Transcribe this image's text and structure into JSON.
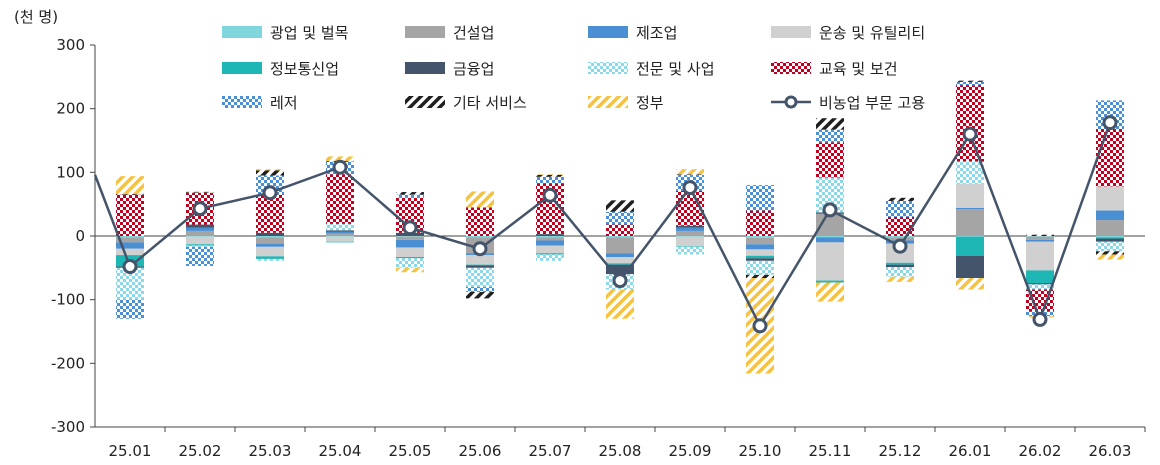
{
  "chart_data": {
    "type": "bar",
    "stacked": true,
    "unit_label": "(천 명)",
    "title": "",
    "xlabel": "",
    "ylabel": "",
    "ylim": [
      -300,
      300
    ],
    "yticks": [
      -300,
      -200,
      -100,
      0,
      100,
      200,
      300
    ],
    "grid": false,
    "legend_position": "top",
    "categories": [
      "25.01",
      "25.02",
      "25.03",
      "25.04",
      "25.05",
      "25.06",
      "25.07",
      "25.08",
      "25.09",
      "25.10",
      "25.11",
      "25.12",
      "26.01",
      "26.02",
      "26.03"
    ],
    "series": [
      {
        "name": "광업 및 벌목",
        "type": "bar",
        "pattern": "solid",
        "color": "#7fd6dc",
        "values": [
          -2,
          -1,
          -2,
          -1,
          -1,
          -2,
          -2,
          -2,
          -1,
          -3,
          -2,
          -2,
          -1,
          -1,
          -2
        ]
      },
      {
        "name": "건설업",
        "type": "bar",
        "pattern": "solid",
        "color": "#a5a5a5",
        "values": [
          -8,
          8,
          -10,
          4,
          -5,
          -25,
          -5,
          -25,
          8,
          -10,
          35,
          -5,
          42,
          -5,
          25
        ]
      },
      {
        "name": "제조업",
        "type": "bar",
        "pattern": "solid",
        "color": "#4a8fd4",
        "values": [
          -10,
          5,
          -5,
          3,
          -12,
          -3,
          -8,
          -6,
          5,
          -8,
          -8,
          -5,
          2,
          -3,
          15
        ]
      },
      {
        "name": "운송 및 유틸리티",
        "type": "bar",
        "pattern": "solid",
        "color": "#d0d0d0",
        "values": [
          -10,
          -12,
          -15,
          -8,
          -15,
          -15,
          -12,
          -10,
          -15,
          -10,
          -60,
          -30,
          38,
          -45,
          38
        ]
      },
      {
        "name": "정보통신업",
        "type": "bar",
        "pattern": "solid",
        "color": "#1fb6b6",
        "values": [
          -18,
          -2,
          -4,
          -1,
          -2,
          -1,
          -2,
          -2,
          -1,
          -4,
          -3,
          -3,
          -30,
          -20,
          -2
        ]
      },
      {
        "name": "금융업",
        "type": "bar",
        "pattern": "solid",
        "color": "#44546a",
        "values": [
          -2,
          5,
          5,
          2,
          5,
          -4,
          3,
          -15,
          3,
          -4,
          2,
          -4,
          -35,
          -2,
          -5
        ]
      },
      {
        "name": "전문 및 사업",
        "type": "bar",
        "pattern": "checker",
        "color": "#8dd8e8",
        "values": [
          -50,
          -2,
          -3,
          10,
          -15,
          -30,
          -10,
          -24,
          -12,
          -22,
          55,
          -15,
          35,
          -8,
          -15
        ]
      },
      {
        "name": "교육 및 보건",
        "type": "bar",
        "pattern": "checker",
        "color": "#c0001e",
        "values": [
          65,
          50,
          60,
          78,
          55,
          45,
          80,
          18,
          55,
          40,
          55,
          30,
          120,
          -35,
          90
        ]
      },
      {
        "name": "레저",
        "type": "bar",
        "pattern": "checker",
        "color": "#4a90d9",
        "values": [
          -30,
          -30,
          30,
          20,
          5,
          -8,
          10,
          20,
          25,
          40,
          20,
          25,
          5,
          -7,
          45
        ]
      },
      {
        "name": "기타 서비스",
        "type": "bar",
        "pattern": "stripe",
        "color": "#1f1f1f",
        "values": [
          1,
          1,
          8,
          1,
          4,
          -10,
          3,
          18,
          1,
          -5,
          18,
          5,
          2,
          2,
          -5
        ]
      },
      {
        "name": "정부",
        "type": "bar",
        "pattern": "stripe",
        "color": "#f5c242",
        "values": [
          28,
          1,
          2,
          7,
          -7,
          25,
          1,
          -46,
          8,
          -150,
          -30,
          -8,
          -18,
          -2,
          -8
        ]
      },
      {
        "name": "비농업 부문 고용",
        "type": "line",
        "color": "#44546a",
        "values": [
          -48,
          43,
          68,
          108,
          13,
          -20,
          64,
          -70,
          76,
          -141,
          41,
          -16,
          160,
          -131,
          178
        ],
        "line_start": 96
      }
    ]
  }
}
